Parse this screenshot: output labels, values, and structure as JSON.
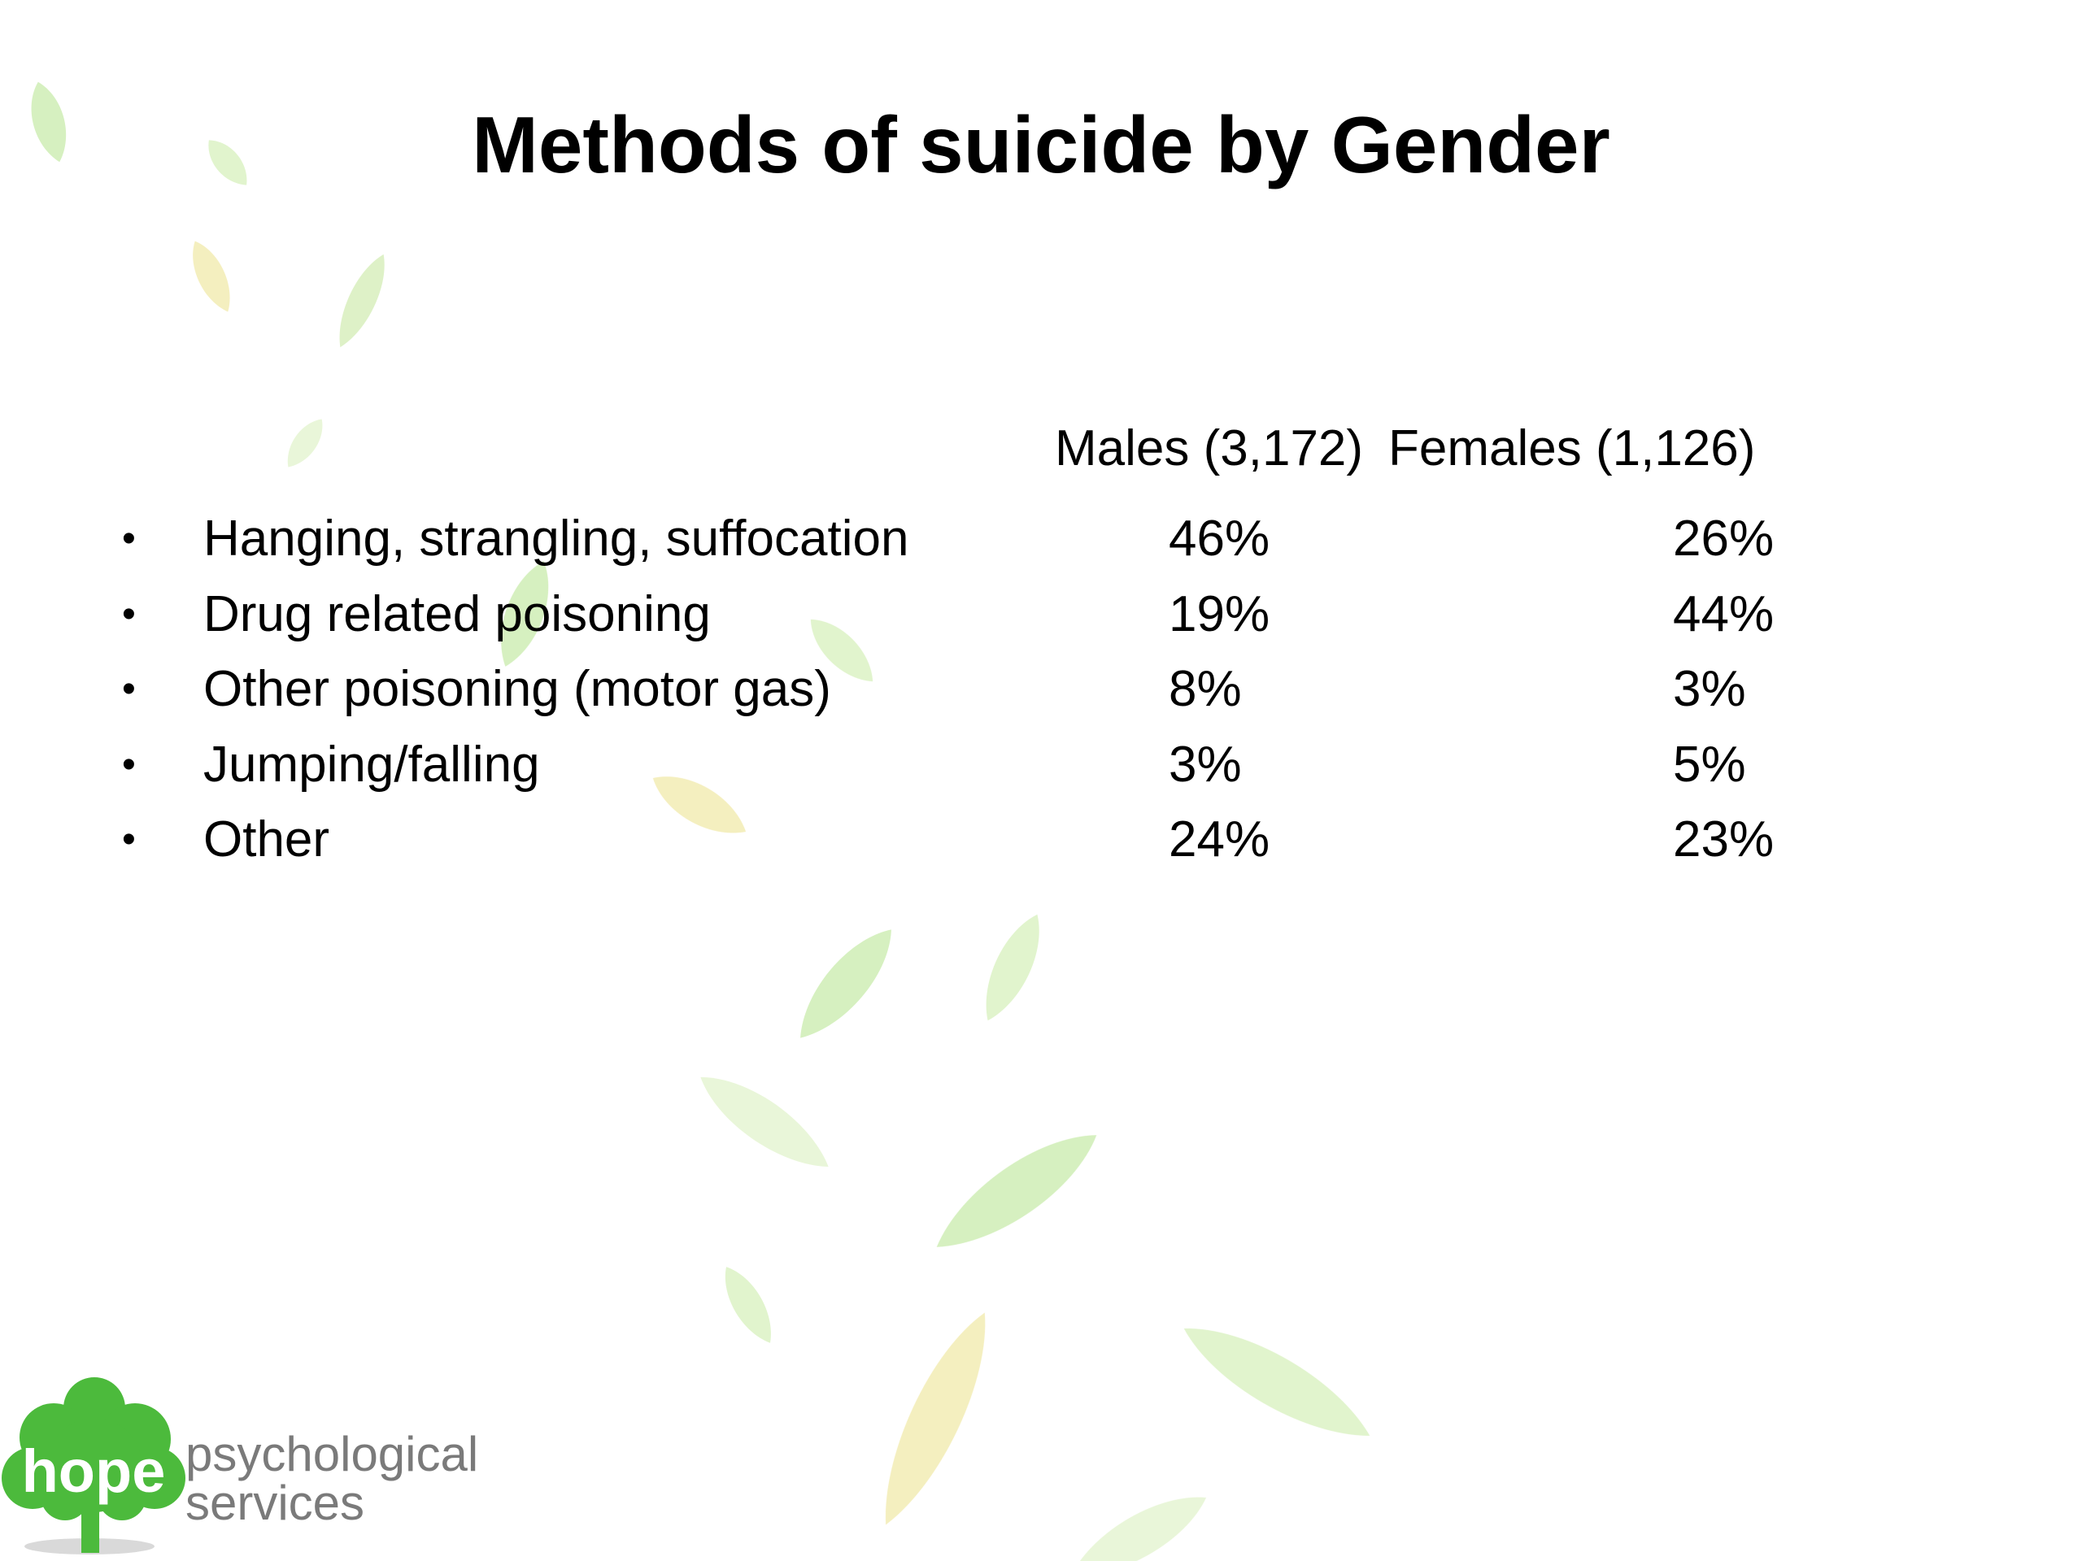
{
  "slide": {
    "title": "Methods of suicide by Gender",
    "columns": {
      "male_label": "Males (3,172)",
      "female_label": "Females (1,126)"
    },
    "rows": [
      {
        "method": "Hanging, strangling, suffocation",
        "male": "46%",
        "female": "26%"
      },
      {
        "method": "Drug related poisoning",
        "male": "19%",
        "female": "44%"
      },
      {
        "method": "Other poisoning (motor gas)",
        "male": "8%",
        "female": "3%"
      },
      {
        "method": "Jumping/falling",
        "male": "3%",
        "female": "5%"
      },
      {
        "method": "Other",
        "male": "24%",
        "female": "23%"
      }
    ],
    "bullet_glyph": "•"
  },
  "logo": {
    "hope": "hope",
    "line1": "psychological",
    "line2": "services",
    "colors": {
      "tree": "#4cba3c",
      "text": "#7a7a7a"
    }
  },
  "decoration": {
    "leaf_colors": [
      "#cfeeb5",
      "#dcf2c4",
      "#f3ecb4",
      "#e6f5d2"
    ]
  }
}
